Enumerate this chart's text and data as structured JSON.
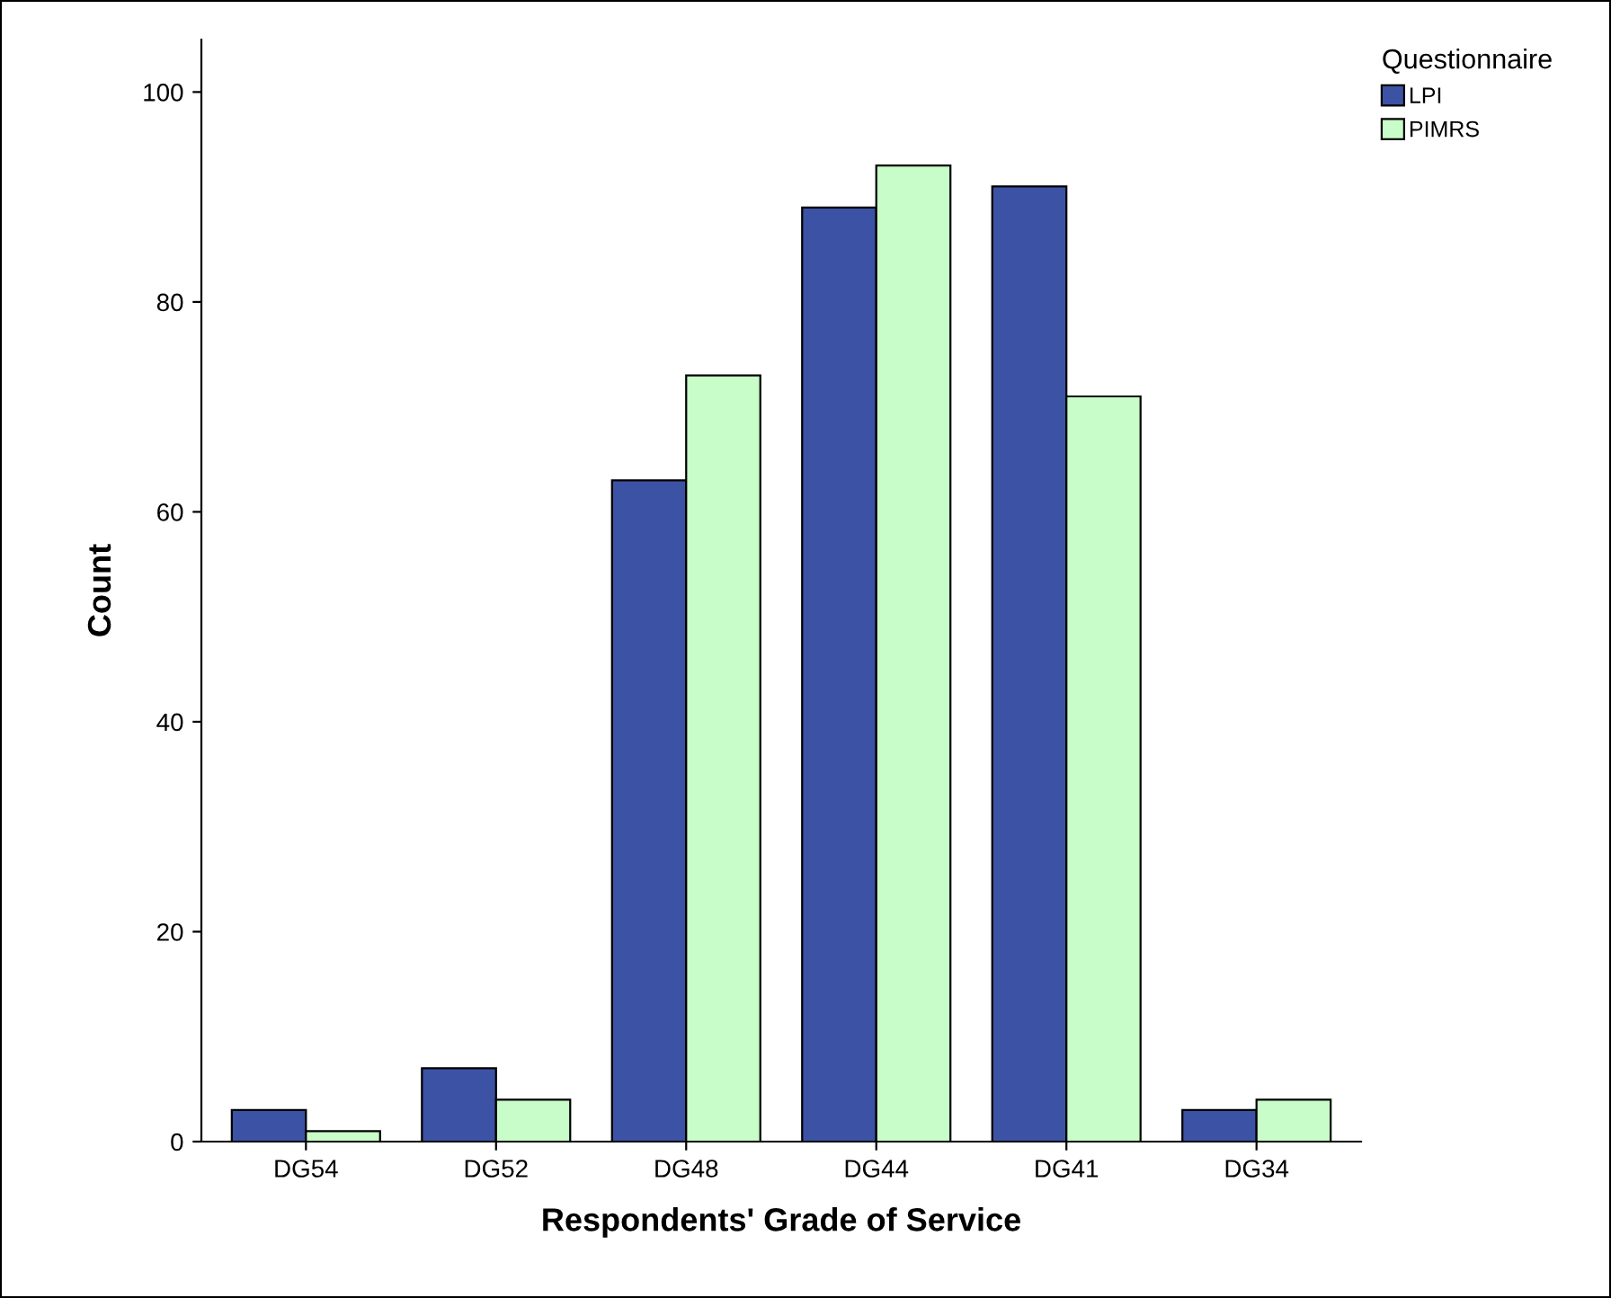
{
  "chart_data": {
    "type": "bar",
    "xlabel": "Respondents' Grade of Service",
    "ylabel": "Count",
    "legend_title": "Questionnaire",
    "categories": [
      "DG54",
      "DG52",
      "DG48",
      "DG44",
      "DG41",
      "DG34"
    ],
    "series": [
      {
        "name": "LPI",
        "color": "#3c52a4",
        "values": [
          3,
          7,
          63,
          89,
          91,
          3
        ]
      },
      {
        "name": "PIMRS",
        "color": "#c8fcc8",
        "values": [
          1,
          4,
          73,
          93,
          71,
          4
        ]
      }
    ],
    "ylim": [
      0,
      105
    ],
    "yticks": [
      0,
      20,
      40,
      60,
      80,
      100
    ],
    "grid": false,
    "legend": "top right"
  }
}
